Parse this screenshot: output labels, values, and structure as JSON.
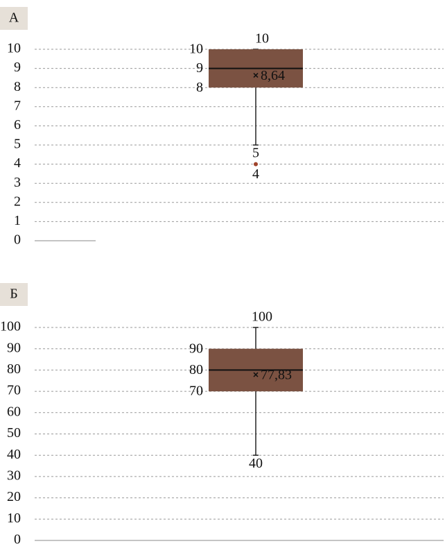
{
  "chart_data": [
    {
      "type": "box",
      "panel_label": "А",
      "ylim": [
        0,
        10
      ],
      "yticks": [
        0,
        1,
        2,
        3,
        4,
        5,
        6,
        7,
        8,
        9,
        10
      ],
      "grid": true,
      "color": "#7b5242",
      "box": {
        "min": 5,
        "q1": 8,
        "median": 9,
        "q3": 10,
        "max": 10,
        "mean": 8.64,
        "outliers": [
          4
        ]
      },
      "value_labels": {
        "mean": "8,64"
      }
    },
    {
      "type": "box",
      "panel_label": "Б",
      "ylim": [
        0,
        100
      ],
      "yticks": [
        0,
        10,
        20,
        30,
        40,
        50,
        60,
        70,
        80,
        90,
        100
      ],
      "grid": true,
      "color": "#7b5242",
      "box": {
        "min": 40,
        "q1": 70,
        "median": 80,
        "q3": 90,
        "max": 100,
        "mean": 77.83,
        "outliers": []
      },
      "value_labels": {
        "mean": "77,83"
      }
    }
  ]
}
